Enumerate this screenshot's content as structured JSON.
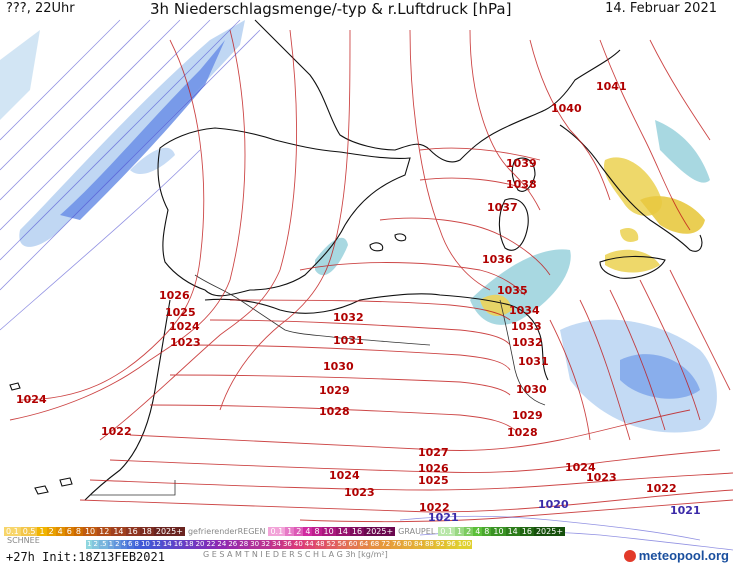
{
  "header": {
    "left": "???, 22Uhr",
    "title": "3h Niederschlagsmenge/-typ & r.Luftdruck [hPa]",
    "date": "14. Februar 2021"
  },
  "isobar_labels": [
    {
      "v": "1041"
    },
    {
      "v": "1040"
    },
    {
      "v": "1039"
    },
    {
      "v": "1038"
    },
    {
      "v": "1037"
    },
    {
      "v": "1036"
    },
    {
      "v": "1035"
    },
    {
      "v": "1034"
    },
    {
      "v": "1033"
    },
    {
      "v": "1032"
    },
    {
      "v": "1031"
    },
    {
      "v": "1030"
    },
    {
      "v": "1029"
    },
    {
      "v": "1028"
    },
    {
      "v": "1027"
    },
    {
      "v": "1026"
    },
    {
      "v": "1025"
    },
    {
      "v": "1024"
    },
    {
      "v": "1023"
    },
    {
      "v": "1022"
    },
    {
      "v": "1021"
    },
    {
      "v": "1020"
    },
    {
      "v": "1032"
    },
    {
      "v": "1031"
    },
    {
      "v": "1030"
    },
    {
      "v": "1029"
    },
    {
      "v": "1028"
    },
    {
      "v": "1026"
    },
    {
      "v": "1025"
    },
    {
      "v": "1024"
    },
    {
      "v": "1023"
    },
    {
      "v": "1024"
    },
    {
      "v": "1022"
    },
    {
      "v": "1027"
    },
    {
      "v": "1026"
    },
    {
      "v": "1025"
    },
    {
      "v": "1024"
    },
    {
      "v": "1023"
    },
    {
      "v": "1022"
    },
    {
      "v": "1021"
    },
    {
      "v": "1024"
    },
    {
      "v": "1023"
    },
    {
      "v": "1022"
    }
  ],
  "legend": {
    "snow_label": "SCHNEE",
    "snow_steps": [
      "0.1",
      "0.5",
      "1",
      "2",
      "4",
      "6",
      "8",
      "10",
      "12",
      "14",
      "16",
      "18",
      "2025+"
    ],
    "rain_label": "gefrierenderREGEN",
    "rain_steps": [
      "0.1",
      "1",
      "2",
      "4",
      "8",
      "10",
      "14",
      "16",
      "2025+"
    ],
    "graupel_label": "GRAUPEL",
    "graupel_steps": [
      "0.1",
      "1",
      "2",
      "4",
      "8",
      "10",
      "14",
      "16",
      "2025+"
    ],
    "total_steps": [
      "1",
      "2",
      ".5",
      "1",
      "2",
      "4",
      "6",
      "8",
      "10",
      "12",
      "14",
      "16",
      "18",
      "20",
      "22",
      "24",
      "26",
      "28",
      "30",
      "32",
      "34",
      "36",
      "40",
      "44",
      "48",
      "52",
      "56",
      "60",
      "64",
      "68",
      "72",
      "76",
      "80",
      "84",
      "88",
      "92",
      "96",
      "100"
    ],
    "total_label": "G E S A M T N I E D E R S C H L A G   3h  [kg/m²]",
    "colors": {
      "snow": "#f0b400",
      "rain": "#d02aa0",
      "graupel": "#5bbf3a",
      "total_start": "#8fd6df",
      "total_mid": "#3a5bd9",
      "total_end": "#e0d030"
    }
  },
  "footer": {
    "run": "+27h  Init:18Z13FEB2021",
    "brand": "meteopool.org"
  }
}
